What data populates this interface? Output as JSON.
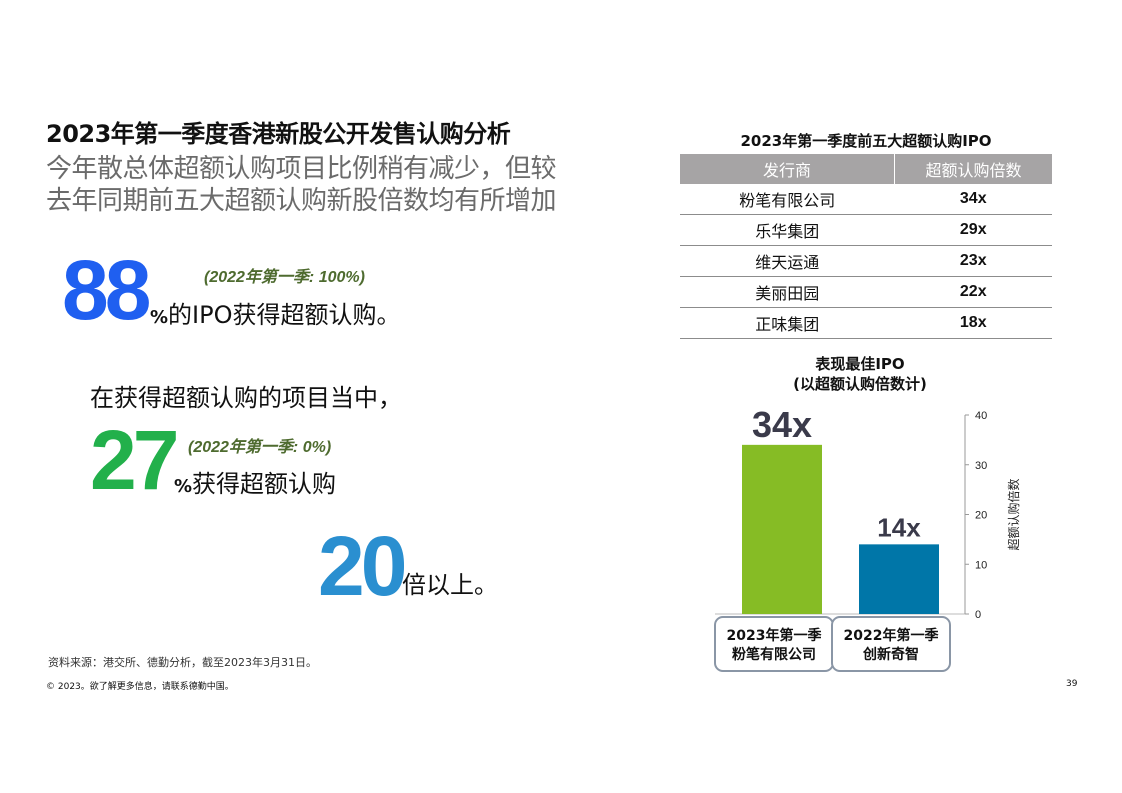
{
  "heading": {
    "title": "2023年第一季度香港新股公开发售认购分析",
    "subtitle_line1": "今年散总体超额认购项目比例稍有减少，但较",
    "subtitle_line2": "去年同期前五大超额认购新股倍数均有所增加"
  },
  "stats": {
    "s1": {
      "number": "88",
      "note": "(2022年第一季: 100%)",
      "pct": "%",
      "text": "的IPO获得超额认购。"
    },
    "intro": "在获得超额认购的项目当中，",
    "s2": {
      "number": "27",
      "note": "(2022年第一季: 0%)",
      "pct": "%",
      "text": "获得超额认购"
    },
    "s3": {
      "number": "20",
      "text": "倍以上。"
    }
  },
  "table": {
    "title": "2023年第一季度前五大超额认购IPO",
    "headers": [
      "发行商",
      "超额认购倍数"
    ],
    "rows": [
      [
        "粉笔有限公司",
        "34x"
      ],
      [
        "乐华集团",
        "29x"
      ],
      [
        "维天运通",
        "23x"
      ],
      [
        "美丽田园",
        "22x"
      ],
      [
        "正味集团",
        "18x"
      ]
    ]
  },
  "chart_title": {
    "line1": "表现最佳IPO",
    "line2": "(以超额认购倍数计)"
  },
  "chart_data": {
    "type": "bar",
    "categories": [
      [
        "2023年第一季",
        "粉笔有限公司"
      ],
      [
        "2022年第一季",
        "创新奇智"
      ]
    ],
    "values": [
      34,
      14
    ],
    "data_labels": [
      "34x",
      "14x"
    ],
    "colors": [
      "#86bc25",
      "#0076a8"
    ],
    "ylabel": "超额认购倍数",
    "ylim": [
      0,
      40
    ],
    "yticks": [
      0,
      10,
      20,
      30,
      40
    ],
    "grid": false,
    "y_axis_side": "right"
  },
  "footer": {
    "source": "资料来源：港交所、德勤分析，截至2023年3月31日。",
    "copyright": "© 2023。欲了解更多信息，请联系德勤中国。",
    "page_number": "39"
  }
}
